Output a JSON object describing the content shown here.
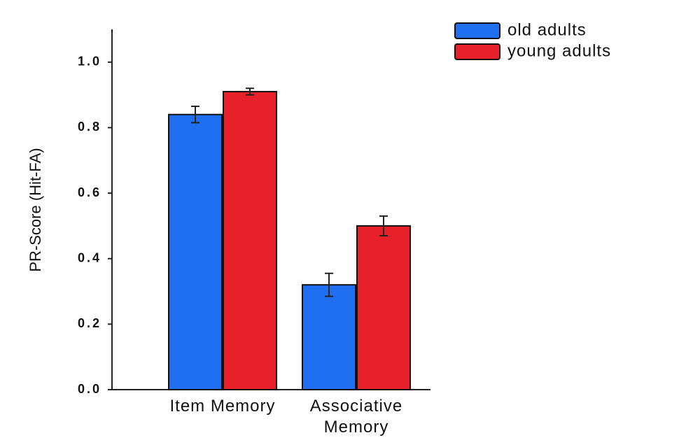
{
  "chart_data": {
    "type": "bar",
    "categories": [
      "Item Memory",
      "Associative Memory"
    ],
    "series": [
      {
        "name": "old adults",
        "color": "#1f6ff0",
        "values": [
          0.84,
          0.32
        ],
        "errors": [
          0.025,
          0.035
        ]
      },
      {
        "name": "young adults",
        "color": "#e8202a",
        "values": [
          0.91,
          0.5
        ],
        "errors": [
          0.01,
          0.03
        ]
      }
    ],
    "y_label": "PR-Score (Hit-FA)",
    "ylim": [
      0,
      1.1
    ],
    "yticks": [
      {
        "value": 0,
        "label": "0.0"
      },
      {
        "value": 0.2,
        "label": "0.2"
      },
      {
        "value": 0.4,
        "label": "0.4"
      },
      {
        "value": 0.6,
        "label": "0.6"
      },
      {
        "value": 0.8,
        "label": "0.8"
      },
      {
        "value": 1,
        "label": "1.0"
      }
    ],
    "legend": "top-right"
  }
}
